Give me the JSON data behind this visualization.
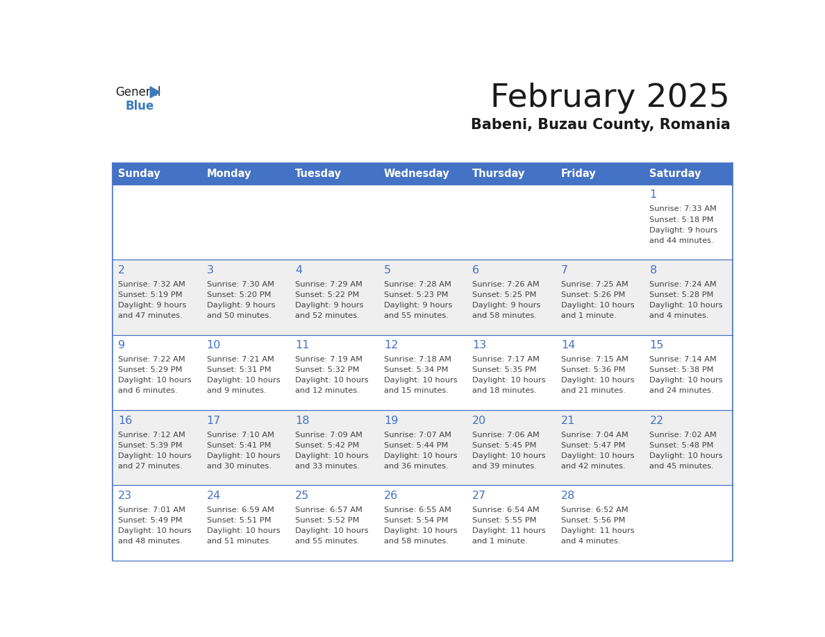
{
  "title": "February 2025",
  "subtitle": "Babeni, Buzau County, Romania",
  "header_bg": "#4472C4",
  "header_text": "#FFFFFF",
  "header_days": [
    "Sunday",
    "Monday",
    "Tuesday",
    "Wednesday",
    "Thursday",
    "Friday",
    "Saturday"
  ],
  "cell_bg_even": "#EFEFEF",
  "cell_bg_odd": "#FFFFFF",
  "cell_border": "#4472C4",
  "day_number_color": "#4472C4",
  "info_text_color": "#404040",
  "title_color": "#1a1a1a",
  "logo_general_color": "#222222",
  "logo_blue_color": "#3a7abf",
  "calendar_data": [
    [
      null,
      null,
      null,
      null,
      null,
      null,
      {
        "day": 1,
        "sunrise": "7:33 AM",
        "sunset": "5:18 PM",
        "daylight": "9 hours",
        "daylight2": "and 44 minutes."
      }
    ],
    [
      {
        "day": 2,
        "sunrise": "7:32 AM",
        "sunset": "5:19 PM",
        "daylight": "9 hours",
        "daylight2": "and 47 minutes."
      },
      {
        "day": 3,
        "sunrise": "7:30 AM",
        "sunset": "5:20 PM",
        "daylight": "9 hours",
        "daylight2": "and 50 minutes."
      },
      {
        "day": 4,
        "sunrise": "7:29 AM",
        "sunset": "5:22 PM",
        "daylight": "9 hours",
        "daylight2": "and 52 minutes."
      },
      {
        "day": 5,
        "sunrise": "7:28 AM",
        "sunset": "5:23 PM",
        "daylight": "9 hours",
        "daylight2": "and 55 minutes."
      },
      {
        "day": 6,
        "sunrise": "7:26 AM",
        "sunset": "5:25 PM",
        "daylight": "9 hours",
        "daylight2": "and 58 minutes."
      },
      {
        "day": 7,
        "sunrise": "7:25 AM",
        "sunset": "5:26 PM",
        "daylight": "10 hours",
        "daylight2": "and 1 minute."
      },
      {
        "day": 8,
        "sunrise": "7:24 AM",
        "sunset": "5:28 PM",
        "daylight": "10 hours",
        "daylight2": "and 4 minutes."
      }
    ],
    [
      {
        "day": 9,
        "sunrise": "7:22 AM",
        "sunset": "5:29 PM",
        "daylight": "10 hours",
        "daylight2": "and 6 minutes."
      },
      {
        "day": 10,
        "sunrise": "7:21 AM",
        "sunset": "5:31 PM",
        "daylight": "10 hours",
        "daylight2": "and 9 minutes."
      },
      {
        "day": 11,
        "sunrise": "7:19 AM",
        "sunset": "5:32 PM",
        "daylight": "10 hours",
        "daylight2": "and 12 minutes."
      },
      {
        "day": 12,
        "sunrise": "7:18 AM",
        "sunset": "5:34 PM",
        "daylight": "10 hours",
        "daylight2": "and 15 minutes."
      },
      {
        "day": 13,
        "sunrise": "7:17 AM",
        "sunset": "5:35 PM",
        "daylight": "10 hours",
        "daylight2": "and 18 minutes."
      },
      {
        "day": 14,
        "sunrise": "7:15 AM",
        "sunset": "5:36 PM",
        "daylight": "10 hours",
        "daylight2": "and 21 minutes."
      },
      {
        "day": 15,
        "sunrise": "7:14 AM",
        "sunset": "5:38 PM",
        "daylight": "10 hours",
        "daylight2": "and 24 minutes."
      }
    ],
    [
      {
        "day": 16,
        "sunrise": "7:12 AM",
        "sunset": "5:39 PM",
        "daylight": "10 hours",
        "daylight2": "and 27 minutes."
      },
      {
        "day": 17,
        "sunrise": "7:10 AM",
        "sunset": "5:41 PM",
        "daylight": "10 hours",
        "daylight2": "and 30 minutes."
      },
      {
        "day": 18,
        "sunrise": "7:09 AM",
        "sunset": "5:42 PM",
        "daylight": "10 hours",
        "daylight2": "and 33 minutes."
      },
      {
        "day": 19,
        "sunrise": "7:07 AM",
        "sunset": "5:44 PM",
        "daylight": "10 hours",
        "daylight2": "and 36 minutes."
      },
      {
        "day": 20,
        "sunrise": "7:06 AM",
        "sunset": "5:45 PM",
        "daylight": "10 hours",
        "daylight2": "and 39 minutes."
      },
      {
        "day": 21,
        "sunrise": "7:04 AM",
        "sunset": "5:47 PM",
        "daylight": "10 hours",
        "daylight2": "and 42 minutes."
      },
      {
        "day": 22,
        "sunrise": "7:02 AM",
        "sunset": "5:48 PM",
        "daylight": "10 hours",
        "daylight2": "and 45 minutes."
      }
    ],
    [
      {
        "day": 23,
        "sunrise": "7:01 AM",
        "sunset": "5:49 PM",
        "daylight": "10 hours",
        "daylight2": "and 48 minutes."
      },
      {
        "day": 24,
        "sunrise": "6:59 AM",
        "sunset": "5:51 PM",
        "daylight": "10 hours",
        "daylight2": "and 51 minutes."
      },
      {
        "day": 25,
        "sunrise": "6:57 AM",
        "sunset": "5:52 PM",
        "daylight": "10 hours",
        "daylight2": "and 55 minutes."
      },
      {
        "day": 26,
        "sunrise": "6:55 AM",
        "sunset": "5:54 PM",
        "daylight": "10 hours",
        "daylight2": "and 58 minutes."
      },
      {
        "day": 27,
        "sunrise": "6:54 AM",
        "sunset": "5:55 PM",
        "daylight": "11 hours",
        "daylight2": "and 1 minute."
      },
      {
        "day": 28,
        "sunrise": "6:52 AM",
        "sunset": "5:56 PM",
        "daylight": "11 hours",
        "daylight2": "and 4 minutes."
      },
      null
    ]
  ],
  "num_rows": 5,
  "num_cols": 7
}
